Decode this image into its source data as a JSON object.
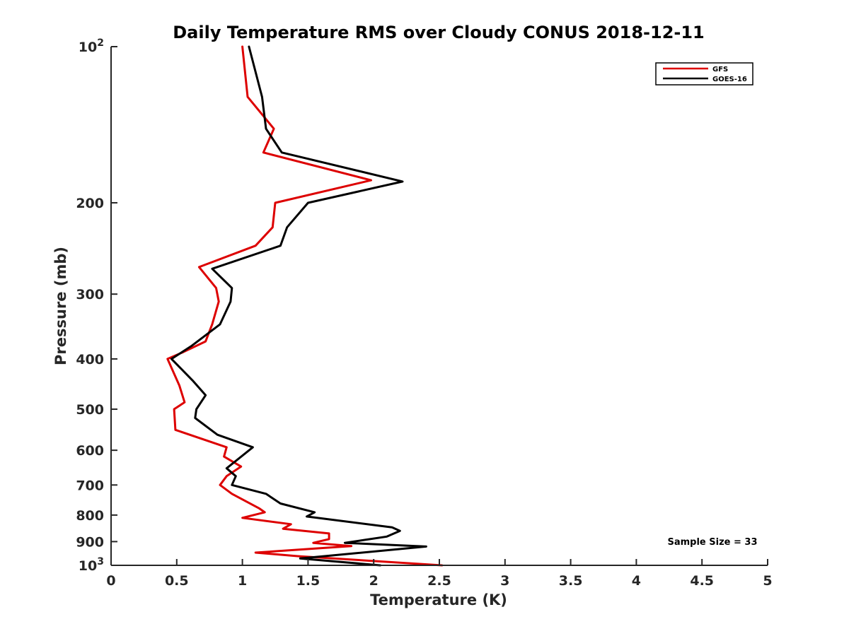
{
  "chart_data": {
    "type": "line",
    "title": "Daily Temperature RMS over Cloudy CONUS 2018-12-11",
    "xlabel": "Temperature (K)",
    "ylabel": "Pressure (mb)",
    "xlim": [
      0,
      5
    ],
    "ylim": [
      100,
      1000
    ],
    "y_scale": "log",
    "y_reversed": true,
    "x_ticks": [
      0,
      0.5,
      1,
      1.5,
      2,
      2.5,
      3,
      3.5,
      4,
      4.5,
      5
    ],
    "x_tick_labels": [
      "0",
      "0.5",
      "1",
      "1.5",
      "2",
      "2.5",
      "3",
      "3.5",
      "4",
      "4.5",
      "5"
    ],
    "y_ticks": [
      100,
      200,
      300,
      400,
      500,
      600,
      700,
      800,
      900,
      1000
    ],
    "y_tick_labels": [
      {
        "base": "10",
        "exp": "2"
      },
      {
        "base": "200",
        "exp": ""
      },
      {
        "base": "300",
        "exp": ""
      },
      {
        "base": "400",
        "exp": ""
      },
      {
        "base": "500",
        "exp": ""
      },
      {
        "base": "600",
        "exp": ""
      },
      {
        "base": "700",
        "exp": ""
      },
      {
        "base": "800",
        "exp": ""
      },
      {
        "base": "900",
        "exp": ""
      },
      {
        "base": "10",
        "exp": "3"
      }
    ],
    "grid": false,
    "legend_position": "top-right",
    "annotation": "Sample Size = 33",
    "series": [
      {
        "name": "GFS",
        "color": "#dd0000",
        "points": [
          {
            "x": 1.0,
            "y": 100
          },
          {
            "x": 1.04,
            "y": 125
          },
          {
            "x": 1.24,
            "y": 144
          },
          {
            "x": 1.16,
            "y": 160
          },
          {
            "x": 1.98,
            "y": 181
          },
          {
            "x": 1.25,
            "y": 200
          },
          {
            "x": 1.23,
            "y": 223
          },
          {
            "x": 1.1,
            "y": 242
          },
          {
            "x": 0.67,
            "y": 266
          },
          {
            "x": 0.8,
            "y": 292
          },
          {
            "x": 0.82,
            "y": 310
          },
          {
            "x": 0.77,
            "y": 343
          },
          {
            "x": 0.72,
            "y": 370
          },
          {
            "x": 0.55,
            "y": 388
          },
          {
            "x": 0.43,
            "y": 400
          },
          {
            "x": 0.52,
            "y": 450
          },
          {
            "x": 0.56,
            "y": 485
          },
          {
            "x": 0.48,
            "y": 500
          },
          {
            "x": 0.49,
            "y": 548
          },
          {
            "x": 0.88,
            "y": 592
          },
          {
            "x": 0.86,
            "y": 617
          },
          {
            "x": 0.99,
            "y": 645
          },
          {
            "x": 0.88,
            "y": 673
          },
          {
            "x": 0.83,
            "y": 700
          },
          {
            "x": 0.92,
            "y": 728
          },
          {
            "x": 1.13,
            "y": 777
          },
          {
            "x": 1.17,
            "y": 790
          },
          {
            "x": 1.0,
            "y": 810
          },
          {
            "x": 1.37,
            "y": 833
          },
          {
            "x": 1.31,
            "y": 850
          },
          {
            "x": 1.66,
            "y": 868
          },
          {
            "x": 1.66,
            "y": 890
          },
          {
            "x": 1.54,
            "y": 905
          },
          {
            "x": 1.83,
            "y": 918
          },
          {
            "x": 1.1,
            "y": 945
          },
          {
            "x": 1.42,
            "y": 960
          },
          {
            "x": 2.52,
            "y": 1000
          }
        ]
      },
      {
        "name": "GOES-16",
        "color": "#000000",
        "points": [
          {
            "x": 1.05,
            "y": 100
          },
          {
            "x": 1.15,
            "y": 125
          },
          {
            "x": 1.18,
            "y": 144
          },
          {
            "x": 1.3,
            "y": 160
          },
          {
            "x": 2.22,
            "y": 182
          },
          {
            "x": 1.5,
            "y": 200
          },
          {
            "x": 1.34,
            "y": 223
          },
          {
            "x": 1.29,
            "y": 242
          },
          {
            "x": 0.77,
            "y": 268
          },
          {
            "x": 0.92,
            "y": 292
          },
          {
            "x": 0.91,
            "y": 310
          },
          {
            "x": 0.83,
            "y": 343
          },
          {
            "x": 0.61,
            "y": 378
          },
          {
            "x": 0.46,
            "y": 400
          },
          {
            "x": 0.62,
            "y": 440
          },
          {
            "x": 0.72,
            "y": 470
          },
          {
            "x": 0.65,
            "y": 500
          },
          {
            "x": 0.64,
            "y": 520
          },
          {
            "x": 0.81,
            "y": 560
          },
          {
            "x": 1.08,
            "y": 592
          },
          {
            "x": 0.88,
            "y": 650
          },
          {
            "x": 0.95,
            "y": 673
          },
          {
            "x": 0.92,
            "y": 700
          },
          {
            "x": 1.18,
            "y": 728
          },
          {
            "x": 1.29,
            "y": 760
          },
          {
            "x": 1.55,
            "y": 790
          },
          {
            "x": 1.49,
            "y": 805
          },
          {
            "x": 2.14,
            "y": 845
          },
          {
            "x": 2.2,
            "y": 858
          },
          {
            "x": 2.1,
            "y": 880
          },
          {
            "x": 1.78,
            "y": 905
          },
          {
            "x": 2.4,
            "y": 920
          },
          {
            "x": 1.44,
            "y": 970
          },
          {
            "x": 2.05,
            "y": 1000
          }
        ]
      }
    ]
  }
}
